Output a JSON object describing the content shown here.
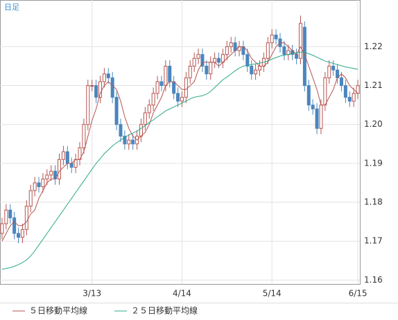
{
  "chart_data": {
    "type": "candlestick",
    "label": "日足",
    "categories": [
      null,
      null,
      null,
      null,
      null,
      null,
      null,
      null,
      null,
      null,
      null,
      null,
      null,
      null,
      null,
      null,
      null,
      null,
      null,
      null,
      null,
      null,
      "3/13",
      null,
      null,
      null,
      null,
      null,
      null,
      null,
      null,
      null,
      null,
      null,
      null,
      null,
      null,
      null,
      null,
      null,
      null,
      null,
      null,
      null,
      "4/14",
      null,
      null,
      null,
      null,
      null,
      null,
      null,
      null,
      null,
      null,
      null,
      null,
      null,
      null,
      null,
      null,
      null,
      null,
      null,
      null,
      null,
      "5/14",
      null,
      null,
      null,
      null,
      null,
      null,
      null,
      null,
      null,
      null,
      null,
      null,
      null,
      null,
      null,
      null,
      null,
      null,
      null,
      null,
      "6/15"
    ],
    "open": [
      1.172,
      1.1745,
      1.178,
      1.176,
      1.172,
      1.171,
      1.173,
      1.179,
      1.183,
      1.185,
      1.184,
      1.186,
      1.187,
      1.188,
      1.186,
      1.191,
      1.193,
      1.19,
      1.189,
      1.191,
      1.194,
      1.2,
      1.21,
      1.21,
      1.207,
      1.211,
      1.213,
      1.212,
      1.207,
      1.2,
      1.197,
      1.195,
      1.196,
      1.195,
      1.197,
      1.2,
      1.203,
      1.205,
      1.208,
      1.211,
      1.21,
      1.215,
      1.211,
      1.208,
      1.206,
      1.207,
      1.212,
      1.215,
      1.217,
      1.218,
      1.215,
      1.213,
      1.216,
      1.217,
      1.216,
      1.218,
      1.22,
      1.221,
      1.219,
      1.22,
      1.218,
      1.215,
      1.213,
      1.214,
      1.215,
      1.217,
      1.221,
      1.223,
      1.222,
      1.22,
      1.218,
      1.219,
      1.218,
      1.217,
      1.225,
      1.21,
      1.205,
      1.204,
      1.199,
      1.205,
      1.212,
      1.215,
      1.214,
      1.212,
      1.21,
      1.207,
      1.206,
      1.208
    ],
    "high": [
      1.176,
      1.1795,
      1.1795,
      1.1775,
      1.1735,
      1.1745,
      1.1805,
      1.1845,
      1.1865,
      1.1865,
      1.1875,
      1.1885,
      1.1895,
      1.1895,
      1.1925,
      1.1945,
      1.1945,
      1.1915,
      1.1925,
      1.1955,
      1.2015,
      1.2115,
      1.2115,
      1.2115,
      1.2125,
      1.2145,
      1.2145,
      1.2135,
      1.2085,
      1.2015,
      1.1985,
      1.1975,
      1.1975,
      1.1985,
      1.2015,
      1.2045,
      1.2065,
      1.2095,
      1.2125,
      1.2125,
      1.2165,
      1.2165,
      1.2125,
      1.2095,
      1.2085,
      1.2135,
      1.2165,
      1.2185,
      1.2195,
      1.2195,
      1.2165,
      1.2175,
      1.2185,
      1.2185,
      1.2195,
      1.2215,
      1.2225,
      1.2225,
      1.2215,
      1.2215,
      1.2195,
      1.2165,
      1.2155,
      1.2165,
      1.2185,
      1.2225,
      1.2245,
      1.2245,
      1.2235,
      1.2215,
      1.2205,
      1.2205,
      1.2195,
      1.228,
      1.2265,
      1.2115,
      1.2065,
      1.2055,
      1.2065,
      1.2135,
      1.2165,
      1.2165,
      1.2155,
      1.2135,
      1.2115,
      1.2085,
      1.2095,
      1.2115
    ],
    "low": [
      1.1705,
      1.173,
      1.1745,
      1.1705,
      1.1695,
      1.1695,
      1.1715,
      1.1775,
      1.1815,
      1.1825,
      1.1825,
      1.1845,
      1.1855,
      1.1845,
      1.1845,
      1.1895,
      1.1885,
      1.1875,
      1.1875,
      1.1895,
      1.1925,
      1.1985,
      1.2085,
      1.2055,
      1.2055,
      1.2095,
      1.2105,
      1.2055,
      1.1985,
      1.1955,
      1.1935,
      1.1935,
      1.1935,
      1.1935,
      1.1955,
      1.1985,
      1.2015,
      1.2035,
      1.2065,
      1.2085,
      1.2085,
      1.2095,
      1.2065,
      1.2045,
      1.2045,
      1.2055,
      1.2105,
      1.2135,
      1.2155,
      1.2135,
      1.2115,
      1.2115,
      1.2145,
      1.2145,
      1.2145,
      1.2165,
      1.2185,
      1.2175,
      1.2175,
      1.2165,
      1.2135,
      1.2115,
      1.2115,
      1.2125,
      1.2135,
      1.2155,
      1.2195,
      1.2205,
      1.2185,
      1.2165,
      1.2165,
      1.2165,
      1.2155,
      1.2155,
      1.2085,
      1.2035,
      1.2025,
      1.1975,
      1.1975,
      1.2035,
      1.2105,
      1.2125,
      1.2105,
      1.2085,
      1.2055,
      1.2045,
      1.2045,
      1.2065
    ],
    "close": [
      1.1745,
      1.178,
      1.176,
      1.172,
      1.171,
      1.173,
      1.179,
      1.183,
      1.185,
      1.184,
      1.186,
      1.187,
      1.188,
      1.186,
      1.191,
      1.193,
      1.19,
      1.189,
      1.191,
      1.194,
      1.2,
      1.21,
      1.21,
      1.207,
      1.211,
      1.213,
      1.212,
      1.207,
      1.2,
      1.197,
      1.195,
      1.196,
      1.195,
      1.197,
      1.2,
      1.203,
      1.205,
      1.208,
      1.211,
      1.21,
      1.215,
      1.211,
      1.208,
      1.206,
      1.207,
      1.212,
      1.215,
      1.217,
      1.218,
      1.215,
      1.213,
      1.216,
      1.217,
      1.216,
      1.218,
      1.22,
      1.221,
      1.219,
      1.22,
      1.218,
      1.215,
      1.213,
      1.214,
      1.215,
      1.217,
      1.221,
      1.223,
      1.222,
      1.22,
      1.218,
      1.219,
      1.218,
      1.217,
      1.226,
      1.21,
      1.205,
      1.204,
      1.199,
      1.205,
      1.212,
      1.215,
      1.214,
      1.212,
      1.21,
      1.207,
      1.206,
      1.208,
      1.21
    ],
    "up_color": "#b5534e",
    "down_color": "#4a86be",
    "series": [
      {
        "name": "５日移動平均線",
        "color": "#b5534e",
        "values": [
          1.17,
          1.172,
          1.174,
          1.175,
          1.174,
          1.174,
          1.175,
          1.177,
          1.178,
          1.181,
          1.183,
          1.185,
          1.186,
          1.186,
          1.188,
          1.189,
          1.19,
          1.19,
          1.191,
          1.191,
          1.193,
          1.197,
          1.201,
          1.204,
          1.208,
          1.21,
          1.211,
          1.21,
          1.209,
          1.206,
          1.202,
          1.199,
          1.197,
          1.196,
          1.197,
          1.198,
          1.2,
          1.203,
          1.205,
          1.207,
          1.21,
          1.211,
          1.211,
          1.21,
          1.209,
          1.209,
          1.21,
          1.211,
          1.214,
          1.216,
          1.216,
          1.216,
          1.216,
          1.215,
          1.216,
          1.217,
          1.218,
          1.219,
          1.22,
          1.22,
          1.219,
          1.217,
          1.216,
          1.215,
          1.215,
          1.216,
          1.218,
          1.22,
          1.221,
          1.221,
          1.22,
          1.219,
          1.218,
          1.22,
          1.218,
          1.215,
          1.212,
          1.209,
          1.205,
          1.205,
          1.207,
          1.209,
          1.212,
          1.213,
          1.212,
          1.21,
          1.209,
          1.208
        ]
      },
      {
        "name": "２５日移動平均線",
        "color": "#2aa88a",
        "values": [
          1.1628,
          1.163,
          1.1632,
          1.1635,
          1.164,
          1.1645,
          1.1652,
          1.1662,
          1.1675,
          1.169,
          1.1705,
          1.172,
          1.1735,
          1.175,
          1.1765,
          1.178,
          1.1795,
          1.181,
          1.1825,
          1.184,
          1.1855,
          1.187,
          1.1885,
          1.19,
          1.1912,
          1.1925,
          1.1935,
          1.1945,
          1.1953,
          1.196,
          1.1967,
          1.1973,
          1.1978,
          1.1983,
          1.199,
          1.1997,
          1.2005,
          1.2012,
          1.202,
          1.2027,
          1.2035,
          1.204,
          1.2045,
          1.205,
          1.2055,
          1.206,
          1.2066,
          1.207,
          1.2072,
          1.2074,
          1.2078,
          1.2085,
          1.2095,
          1.2105,
          1.2115,
          1.2122,
          1.213,
          1.2138,
          1.2145,
          1.215,
          1.2152,
          1.2154,
          1.2156,
          1.2158,
          1.216,
          1.2163,
          1.2168,
          1.2172,
          1.2176,
          1.2178,
          1.218,
          1.2182,
          1.2184,
          1.2186,
          1.2186,
          1.2182,
          1.2178,
          1.2173,
          1.2168,
          1.2163,
          1.216,
          1.2157,
          1.2154,
          1.2151,
          1.2148,
          1.2146,
          1.2144,
          1.2142
        ]
      }
    ],
    "ylim": [
      1.159,
      1.232
    ],
    "yticks": [
      1.16,
      1.17,
      1.18,
      1.19,
      {
        "value": 1.2,
        "label": "1.20"
      },
      1.21,
      1.22
    ],
    "grid": true
  }
}
